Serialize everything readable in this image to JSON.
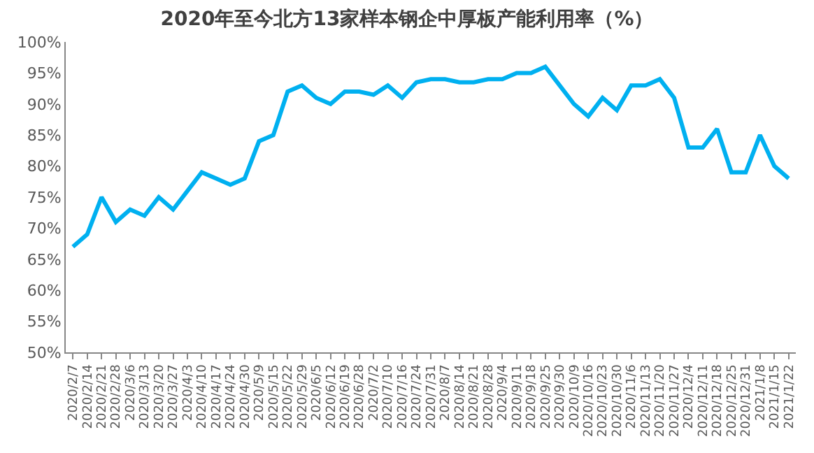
{
  "chart_data": {
    "type": "line",
    "title": "2020年至今北方13家样本钢企中厚板产能利用率（%）",
    "categories": [
      "2020/2/7",
      "2020/2/14",
      "2020/2/21",
      "2020/2/28",
      "2020/3/6",
      "2020/3/13",
      "2020/3/20",
      "2020/3/27",
      "2020/4/3",
      "2020/4/10",
      "2020/4/17",
      "2020/4/24",
      "2020/4/30",
      "2020/5/9",
      "2020/5/15",
      "2020/5/22",
      "2020/5/29",
      "2020/6/5",
      "2020/6/12",
      "2020/6/19",
      "2020/6/28",
      "2020/7/2",
      "2020/7/10",
      "2020/7/16",
      "2020/7/24",
      "2020/7/31",
      "2020/8/7",
      "2020/8/14",
      "2020/8/21",
      "2020/8/28",
      "2020/9/4",
      "2020/9/11",
      "2020/9/18",
      "2020/9/25",
      "2020/9/30",
      "2020/10/9",
      "2020/10/16",
      "2020/10/23",
      "2020/10/30",
      "2020/11/6",
      "2020/11/13",
      "2020/11/20",
      "2020/11/27",
      "2020/12/4",
      "2020/12/11",
      "2020/12/18",
      "2020/12/25",
      "2020/12/31",
      "2021/1/8",
      "2021/1/15",
      "2021/1/22"
    ],
    "series": [
      {
        "color": "#00b0f0",
        "values": [
          67,
          69,
          75,
          71,
          73,
          72,
          75,
          73,
          76,
          79,
          78,
          77,
          78,
          84,
          85,
          92,
          93,
          91,
          90,
          92,
          92,
          91.5,
          93,
          91,
          93.5,
          94,
          94,
          93.5,
          93.5,
          94,
          94,
          95,
          95,
          96,
          93,
          90,
          88,
          91,
          89,
          93,
          93,
          94,
          91,
          83,
          83,
          86,
          79,
          79,
          85,
          80,
          78
        ]
      }
    ],
    "ylim": [
      50,
      100
    ],
    "yticks": [
      {
        "value": 50,
        "label": "50%"
      },
      {
        "value": 55,
        "label": "55%"
      },
      {
        "value": 60,
        "label": "60%"
      },
      {
        "value": 65,
        "label": "65%"
      },
      {
        "value": 70,
        "label": "70%"
      },
      {
        "value": 75,
        "label": "75%"
      },
      {
        "value": 80,
        "label": "80%"
      },
      {
        "value": 85,
        "label": "85%"
      },
      {
        "value": 90,
        "label": "90%"
      },
      {
        "value": 95,
        "label": "95%"
      },
      {
        "value": 100,
        "label": "100%"
      }
    ],
    "grid": false,
    "legend": false,
    "marker": "none",
    "line_style": "solid"
  }
}
